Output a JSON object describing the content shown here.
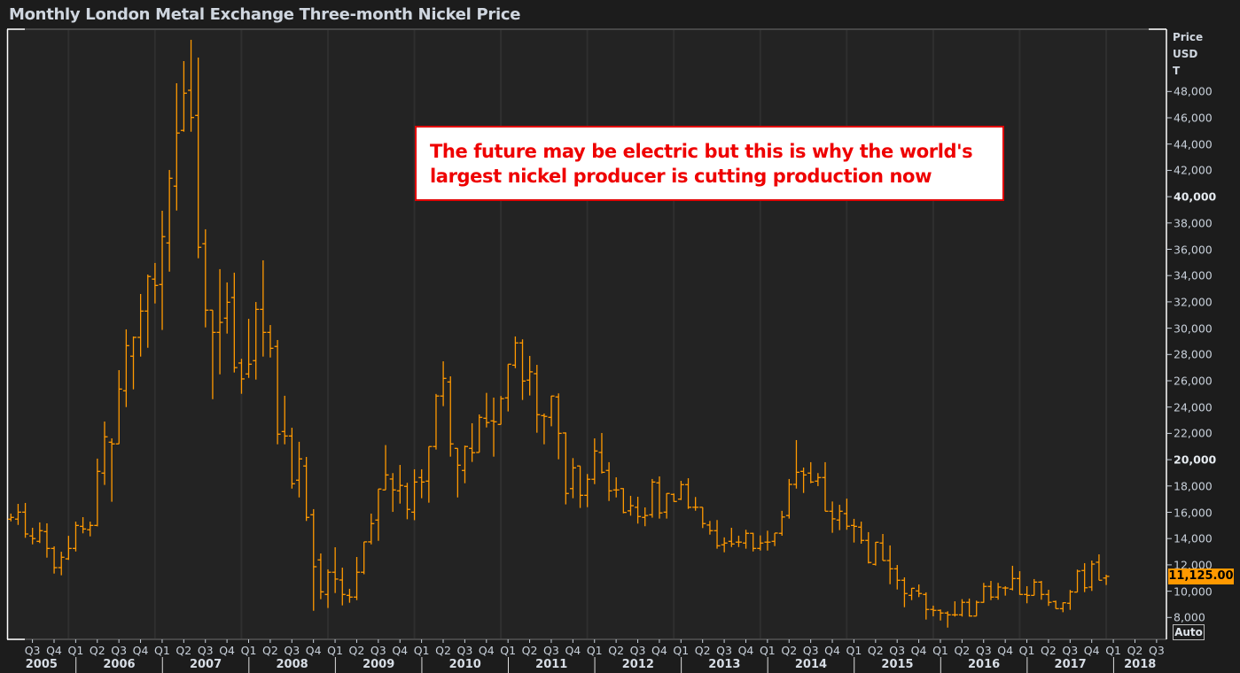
{
  "header": {
    "title": "Monthly London Metal Exchange Three-month Nickel Price"
  },
  "annotation": {
    "headline": "The future may be electric but this is why the world's largest nickel producer is cutting production now"
  },
  "axis": {
    "unit_lines": [
      "Price",
      "USD",
      "T"
    ],
    "auto_label": "Auto"
  },
  "last_price": {
    "label": "11,125.00",
    "value": 11125
  },
  "colors": {
    "bar": "#ff9900",
    "background": "#232323",
    "grid": "#2f2f2f",
    "annotation_text": "#ee0000",
    "price_tag": "#ff9900"
  },
  "chart_data": {
    "type": "ohlc",
    "title": "Monthly London Metal Exchange Three-month Nickel Price",
    "ylabel": "Price USD T",
    "interval": "monthly",
    "ylim": [
      7000,
      52000
    ],
    "grid": "vertical yearly",
    "y_ticks": [
      {
        "value": 48000,
        "label": "48,000"
      },
      {
        "value": 46000,
        "label": "46,000"
      },
      {
        "value": 44000,
        "label": "44,000"
      },
      {
        "value": 42000,
        "label": "42,000"
      },
      {
        "value": 40000,
        "label": "40,000",
        "major": true
      },
      {
        "value": 38000,
        "label": "38,000"
      },
      {
        "value": 36000,
        "label": "36,000"
      },
      {
        "value": 34000,
        "label": "34,000"
      },
      {
        "value": 32000,
        "label": "32,000"
      },
      {
        "value": 30000,
        "label": "30,000"
      },
      {
        "value": 28000,
        "label": "28,000"
      },
      {
        "value": 26000,
        "label": "26,000"
      },
      {
        "value": 24000,
        "label": "24,000"
      },
      {
        "value": 22000,
        "label": "22,000"
      },
      {
        "value": 20000,
        "label": "20,000",
        "major": true
      },
      {
        "value": 18000,
        "label": "18,000"
      },
      {
        "value": 16000,
        "label": "16,000"
      },
      {
        "value": 14000,
        "label": "14,000"
      },
      {
        "value": 12000,
        "label": "12,000"
      },
      {
        "value": 10000,
        "label": "10,000"
      },
      {
        "value": 8000,
        "label": "8,000"
      }
    ],
    "quarter_labels": [
      "Q3",
      "Q4",
      "Q1",
      "Q2",
      "Q3",
      "Q4",
      "Q1",
      "Q2",
      "Q3",
      "Q4",
      "Q1",
      "Q2",
      "Q3",
      "Q4",
      "Q1",
      "Q2",
      "Q3",
      "Q4",
      "Q1",
      "Q2",
      "Q3",
      "Q4",
      "Q1",
      "Q2",
      "Q3",
      "Q4",
      "Q1",
      "Q2",
      "Q3",
      "Q4",
      "Q1",
      "Q2",
      "Q3",
      "Q4",
      "Q1",
      "Q2",
      "Q3",
      "Q4",
      "Q1",
      "Q2",
      "Q3",
      "Q4",
      "Q1",
      "Q2",
      "Q3",
      "Q4",
      "Q1",
      "Q2",
      "Q3",
      "Q4",
      "Q1",
      "Q2",
      "Q3"
    ],
    "year_labels": [
      "2005",
      "2006",
      "2007",
      "2008",
      "2009",
      "2010",
      "2011",
      "2012",
      "2013",
      "2014",
      "2015",
      "2016",
      "2017",
      "2018"
    ],
    "ohlc_fields": [
      "open",
      "high",
      "low",
      "close"
    ],
    "bars": [
      [
        15475,
        15900,
        15310,
        15610
      ],
      [
        15480,
        16640,
        15040,
        16010
      ],
      [
        16010,
        16710,
        14060,
        14350
      ],
      [
        14200,
        14820,
        13560,
        14000
      ],
      [
        13790,
        15230,
        13660,
        14600
      ],
      [
        14530,
        15160,
        12550,
        13250
      ],
      [
        13250,
        13410,
        11340,
        11790
      ],
      [
        11790,
        13000,
        11210,
        12580
      ],
      [
        12460,
        14210,
        12380,
        13250
      ],
      [
        13250,
        15290,
        13020,
        15000
      ],
      [
        14930,
        15630,
        14400,
        14730
      ],
      [
        14670,
        15290,
        14170,
        15000
      ],
      [
        15000,
        20080,
        14930,
        19110
      ],
      [
        18980,
        22900,
        18080,
        21740
      ],
      [
        21330,
        21620,
        16800,
        21200
      ],
      [
        21200,
        26810,
        21200,
        25370
      ],
      [
        25240,
        29910,
        24000,
        28670
      ],
      [
        27870,
        29370,
        25350,
        29300
      ],
      [
        29300,
        32600,
        27840,
        31300
      ],
      [
        31300,
        34080,
        28510,
        33930
      ],
      [
        33730,
        34960,
        31880,
        33250
      ],
      [
        33320,
        38930,
        29860,
        36960
      ],
      [
        36480,
        42030,
        34300,
        41400
      ],
      [
        40800,
        48630,
        38950,
        44840
      ],
      [
        45040,
        50310,
        44940,
        47870
      ],
      [
        48090,
        51930,
        44940,
        46020
      ],
      [
        46180,
        50580,
        35320,
        36150
      ],
      [
        36420,
        37520,
        30060,
        31370
      ],
      [
        31370,
        31370,
        24600,
        29680
      ],
      [
        29680,
        34490,
        26490,
        30440
      ],
      [
        30760,
        33480,
        29590,
        31970
      ],
      [
        32330,
        34220,
        26630,
        27000
      ],
      [
        27350,
        27670,
        25010,
        26140
      ],
      [
        26520,
        30710,
        26220,
        27260
      ],
      [
        27530,
        31990,
        26090,
        31430
      ],
      [
        31430,
        35160,
        27840,
        29680
      ],
      [
        29680,
        30240,
        27770,
        28470
      ],
      [
        28610,
        29100,
        21170,
        21940
      ],
      [
        22140,
        24860,
        21170,
        21800
      ],
      [
        21800,
        22430,
        17800,
        18170
      ],
      [
        18440,
        21360,
        17130,
        20060
      ],
      [
        19520,
        20210,
        15340,
        15610
      ],
      [
        15810,
        16240,
        8510,
        11860
      ],
      [
        12380,
        12870,
        9390,
        9950
      ],
      [
        9750,
        11660,
        8720,
        11440
      ],
      [
        11440,
        13340,
        9860,
        10920
      ],
      [
        10850,
        11790,
        8920,
        9750
      ],
      [
        9680,
        10180,
        9120,
        9550
      ],
      [
        9550,
        12600,
        9320,
        11440
      ],
      [
        11440,
        13750,
        11290,
        13750
      ],
      [
        13750,
        15900,
        13560,
        15140
      ],
      [
        15410,
        17770,
        13830,
        17770
      ],
      [
        17700,
        21110,
        17700,
        18840
      ],
      [
        18530,
        18980,
        16030,
        17700
      ],
      [
        17630,
        19600,
        16660,
        18040
      ],
      [
        17970,
        18240,
        15470,
        16220
      ],
      [
        16010,
        19270,
        15400,
        18300
      ],
      [
        18640,
        19270,
        17070,
        18300
      ],
      [
        18370,
        21000,
        16730,
        21000
      ],
      [
        21000,
        25000,
        20770,
        24840
      ],
      [
        24840,
        27480,
        24070,
        26180
      ],
      [
        25910,
        26340,
        20230,
        21200
      ],
      [
        20860,
        20860,
        17130,
        19580
      ],
      [
        19180,
        21070,
        18210,
        21000
      ],
      [
        20860,
        22770,
        19830,
        20530
      ],
      [
        20550,
        23440,
        20550,
        23220
      ],
      [
        23150,
        25080,
        22450,
        22820
      ],
      [
        22950,
        24720,
        20230,
        22880
      ],
      [
        22680,
        24840,
        22680,
        24640
      ],
      [
        24700,
        27260,
        23670,
        27260
      ],
      [
        27190,
        29370,
        26960,
        28880
      ],
      [
        28880,
        29150,
        24540,
        25980
      ],
      [
        26050,
        27890,
        24880,
        26680
      ],
      [
        26540,
        27210,
        22050,
        23420
      ],
      [
        23350,
        23510,
        21170,
        23290
      ],
      [
        23220,
        24860,
        22540,
        24840
      ],
      [
        24770,
        25040,
        20030,
        22000
      ],
      [
        22030,
        22070,
        16600,
        17430
      ],
      [
        17800,
        20120,
        17070,
        19380
      ],
      [
        19520,
        19520,
        16330,
        17290
      ],
      [
        17290,
        18910,
        16390,
        18510
      ],
      [
        18510,
        21620,
        18140,
        20660
      ],
      [
        20550,
        22030,
        18950,
        19040
      ],
      [
        19180,
        19810,
        16860,
        17630
      ],
      [
        17700,
        18660,
        17130,
        17700
      ],
      [
        17800,
        17830,
        15920,
        15990
      ],
      [
        16110,
        17250,
        15740,
        16500
      ],
      [
        16380,
        17180,
        15140,
        15680
      ],
      [
        15610,
        16370,
        14940,
        15750
      ],
      [
        15810,
        18530,
        15590,
        18300
      ],
      [
        18240,
        18730,
        15520,
        15950
      ],
      [
        16010,
        17450,
        15520,
        17430
      ],
      [
        17360,
        17430,
        16800,
        16820
      ],
      [
        17000,
        18390,
        16930,
        18100
      ],
      [
        18100,
        18590,
        16260,
        16380
      ],
      [
        16380,
        17160,
        16120,
        16380
      ],
      [
        16380,
        16380,
        14800,
        15140
      ],
      [
        15030,
        15340,
        14300,
        14600
      ],
      [
        14600,
        15410,
        13230,
        13450
      ],
      [
        13530,
        14090,
        12960,
        13660
      ],
      [
        13790,
        14820,
        13360,
        13590
      ],
      [
        13730,
        14220,
        13360,
        13730
      ],
      [
        13660,
        14670,
        13230,
        14400
      ],
      [
        14400,
        14440,
        13020,
        13250
      ],
      [
        13250,
        14240,
        13090,
        13660
      ],
      [
        13730,
        14600,
        13090,
        13730
      ],
      [
        13790,
        14420,
        13430,
        14420
      ],
      [
        14400,
        16110,
        14220,
        15640
      ],
      [
        15750,
        18530,
        15520,
        18120
      ],
      [
        18120,
        21490,
        17800,
        19040
      ],
      [
        19110,
        19400,
        17470,
        18840
      ],
      [
        18980,
        19810,
        18210,
        18300
      ],
      [
        18370,
        18980,
        17990,
        18640
      ],
      [
        18640,
        19810,
        16080,
        16080
      ],
      [
        16080,
        16820,
        14440,
        15500
      ],
      [
        15410,
        16570,
        14640,
        16080
      ],
      [
        15900,
        17040,
        14670,
        14940
      ],
      [
        15000,
        15500,
        13700,
        14930
      ],
      [
        14870,
        15290,
        13610,
        13860
      ],
      [
        13860,
        14490,
        12110,
        12180
      ],
      [
        12040,
        13740,
        11950,
        13720
      ],
      [
        13660,
        14350,
        12330,
        12330
      ],
      [
        12330,
        13480,
        10530,
        11700
      ],
      [
        11700,
        11990,
        10130,
        10830
      ],
      [
        10830,
        11050,
        8780,
        9820
      ],
      [
        9680,
        10240,
        9320,
        10220
      ],
      [
        10020,
        10510,
        9550,
        9820
      ],
      [
        9750,
        9910,
        7840,
        8610
      ],
      [
        8610,
        8900,
        8090,
        8540
      ],
      [
        8540,
        8610,
        7770,
        8340
      ],
      [
        8340,
        8470,
        7230,
        8200
      ],
      [
        8200,
        9230,
        8070,
        8200
      ],
      [
        8200,
        9390,
        8070,
        9150
      ],
      [
        9150,
        9440,
        8070,
        8110
      ],
      [
        8110,
        9280,
        8110,
        9150
      ],
      [
        9150,
        10630,
        9120,
        10360
      ],
      [
        10360,
        10780,
        9320,
        9550
      ],
      [
        9550,
        10630,
        9350,
        10310
      ],
      [
        10240,
        10380,
        9660,
        10240
      ],
      [
        10160,
        11930,
        10060,
        10960
      ],
      [
        10960,
        11520,
        9720,
        9750
      ],
      [
        9750,
        10380,
        9080,
        9680
      ],
      [
        9680,
        10920,
        9680,
        10690
      ],
      [
        10690,
        10780,
        9350,
        9750
      ],
      [
        9750,
        10110,
        8880,
        9150
      ],
      [
        9210,
        9280,
        8670,
        8670
      ],
      [
        8670,
        9150,
        8400,
        9120
      ],
      [
        9080,
        10090,
        8580,
        9950
      ],
      [
        9930,
        11640,
        9930,
        11520
      ],
      [
        11570,
        12130,
        9930,
        10260
      ],
      [
        10310,
        12330,
        10020,
        12060
      ],
      [
        12200,
        12800,
        10830,
        10830
      ],
      [
        11000,
        11250,
        10470,
        11125
      ]
    ]
  }
}
